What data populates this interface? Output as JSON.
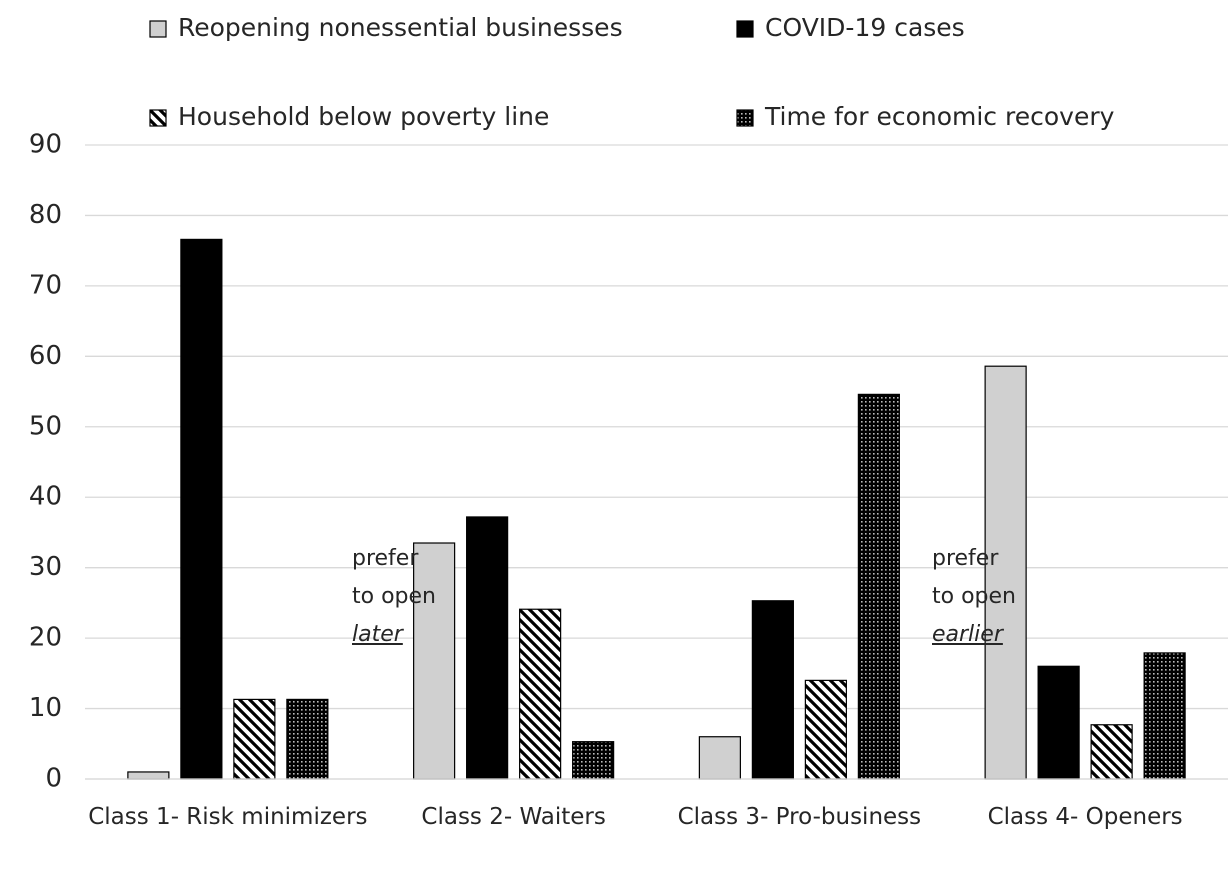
{
  "chart_data": {
    "type": "bar",
    "categories": [
      "Class 1- Risk minimizers",
      "Class 2- Waiters",
      "Class 3- Pro-business",
      "Class 4- Openers"
    ],
    "series": [
      {
        "name": "Reopening nonessential businesses",
        "color": "#d0d0d0",
        "values": [
          1,
          33.5,
          6,
          58.6
        ]
      },
      {
        "name": "COVID-19 cases",
        "color": "#000000",
        "values": [
          76.6,
          37.2,
          25.3,
          16
        ]
      },
      {
        "name": "Household below poverty line",
        "color": "#000000",
        "pattern": "hatch",
        "values": [
          11.3,
          24.1,
          14,
          7.7
        ]
      },
      {
        "name": "Time for economic recovery",
        "color": "#000000",
        "pattern": "dots",
        "values": [
          11.3,
          5.3,
          54.6,
          17.9
        ]
      }
    ],
    "annotations": [
      [
        "prefer",
        "to open",
        "later"
      ],
      [
        "prefer",
        "to open",
        "earlier"
      ]
    ],
    "ylim": [
      0,
      90
    ],
    "yticks": [
      0,
      10,
      20,
      30,
      40,
      50,
      60,
      70,
      80,
      90
    ],
    "grid": true,
    "legend": "top"
  }
}
